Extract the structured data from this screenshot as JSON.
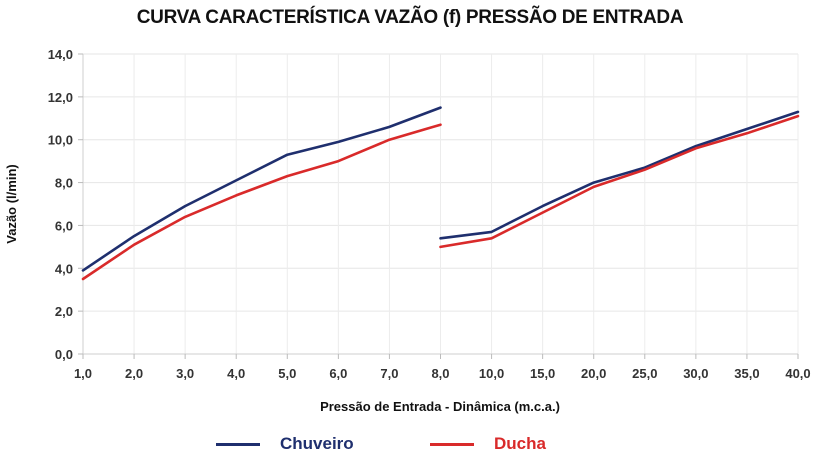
{
  "chart_data": {
    "type": "line",
    "title": "CURVA CARACTERÍSTICA VAZÃO (f) PRESSÃO DE ENTRADA",
    "xlabel": "Pressão de Entrada - Dinâmica (m.c.a.)",
    "ylabel": "Vazão (l/min)",
    "categories": [
      "1,0",
      "2,0",
      "3,0",
      "4,0",
      "5,0",
      "6,0",
      "7,0",
      "8,0",
      "10,0",
      "15,0",
      "20,0",
      "25,0",
      "30,0",
      "35,0",
      "40,0"
    ],
    "ylim": [
      0,
      14
    ],
    "yticks": [
      "0,0",
      "2,0",
      "4,0",
      "6,0",
      "8,0",
      "10,0",
      "12,0",
      "14,0"
    ],
    "ytick_values": [
      0,
      2,
      4,
      6,
      8,
      10,
      12,
      14
    ],
    "grid": true,
    "legend_position": "bottom",
    "series": [
      {
        "name": "Chuveiro",
        "color": "#1f2f6e",
        "segments": [
          {
            "categories": [
              "1,0",
              "2,0",
              "3,0",
              "4,0",
              "5,0",
              "6,0",
              "7,0",
              "8,0"
            ],
            "values": [
              3.9,
              5.5,
              6.9,
              8.1,
              9.3,
              9.9,
              10.6,
              11.5
            ]
          },
          {
            "categories": [
              "8,0",
              "10,0",
              "15,0",
              "20,0",
              "25,0",
              "30,0",
              "35,0",
              "40,0"
            ],
            "values": [
              5.4,
              5.7,
              6.9,
              8.0,
              8.7,
              9.7,
              10.5,
              11.3
            ]
          }
        ]
      },
      {
        "name": "Ducha",
        "color": "#d92a2a",
        "segments": [
          {
            "categories": [
              "1,0",
              "2,0",
              "3,0",
              "4,0",
              "5,0",
              "6,0",
              "7,0",
              "8,0"
            ],
            "values": [
              3.5,
              5.1,
              6.4,
              7.4,
              8.3,
              9.0,
              10.0,
              10.7
            ]
          },
          {
            "categories": [
              "8,0",
              "10,0",
              "15,0",
              "20,0",
              "25,0",
              "30,0",
              "35,0",
              "40,0"
            ],
            "values": [
              5.0,
              5.4,
              6.6,
              7.8,
              8.6,
              9.6,
              10.3,
              11.1
            ]
          }
        ]
      }
    ]
  }
}
